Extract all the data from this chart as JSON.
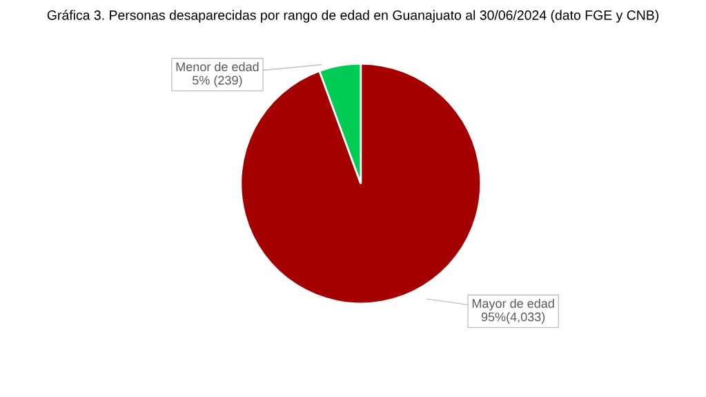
{
  "chart_data": {
    "type": "pie",
    "title": "Gráfica 3. Personas desaparecidas por rango de edad en Guanajuato al 30/06/2024 (dato FGE y CNB)",
    "categories": [
      "Mayor de edad",
      "Menor de edad"
    ],
    "values": [
      4033,
      239
    ],
    "colors": [
      "#a50000",
      "#00cc55"
    ],
    "value_labels": [
      "95%(4,033)",
      "5% (239)"
    ],
    "legend": false
  }
}
